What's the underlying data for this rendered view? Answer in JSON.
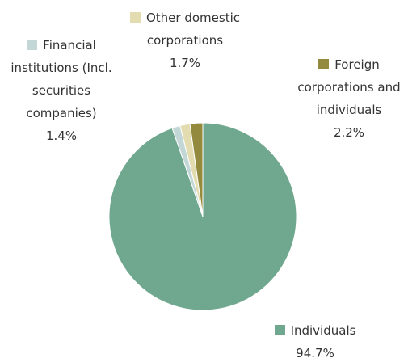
{
  "chart_data": {
    "type": "pie",
    "categories": [
      "Individuals",
      "Financial institutions (Incl. securities companies)",
      "Other domestic corporations",
      "Foreign corporations and individuals"
    ],
    "values": [
      94.7,
      1.4,
      1.7,
      2.2
    ],
    "value_labels": [
      "94.7%",
      "1.4%",
      "1.7%",
      "2.2%"
    ],
    "colors": [
      "#6fa88f",
      "#c3d8d6",
      "#e2dcb0",
      "#938a3e"
    ]
  }
}
